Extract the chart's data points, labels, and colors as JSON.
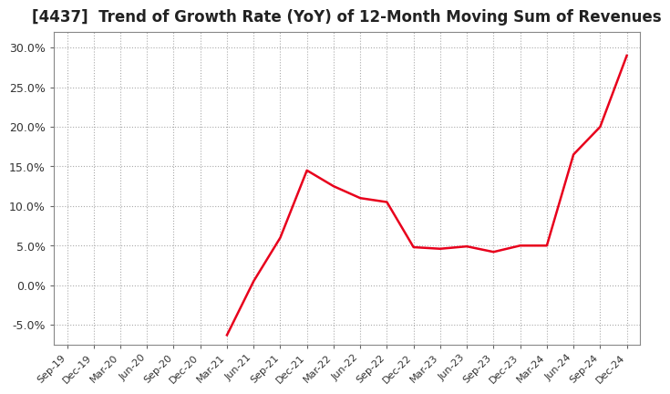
{
  "title": "[4437]  Trend of Growth Rate (YoY) of 12-Month Moving Sum of Revenues",
  "title_fontsize": 12,
  "line_color": "#e8001c",
  "background_color": "#ffffff",
  "grid_color": "#aaaaaa",
  "ylim": [
    -0.075,
    0.32
  ],
  "yticks": [
    -0.05,
    0.0,
    0.05,
    0.1,
    0.15,
    0.2,
    0.25,
    0.3
  ],
  "x_labels": [
    "Sep-19",
    "Dec-19",
    "Mar-20",
    "Jun-20",
    "Sep-20",
    "Dec-20",
    "Mar-21",
    "Jun-21",
    "Sep-21",
    "Dec-21",
    "Mar-22",
    "Jun-22",
    "Sep-22",
    "Dec-22",
    "Mar-23",
    "Jun-23",
    "Sep-23",
    "Dec-23",
    "Mar-24",
    "Jun-24",
    "Sep-24",
    "Dec-24"
  ],
  "y_values": [
    null,
    null,
    null,
    null,
    null,
    null,
    -0.063,
    0.005,
    0.06,
    0.145,
    0.125,
    0.11,
    0.105,
    0.048,
    0.046,
    0.049,
    0.042,
    0.05,
    0.05,
    0.165,
    0.2,
    0.29
  ]
}
